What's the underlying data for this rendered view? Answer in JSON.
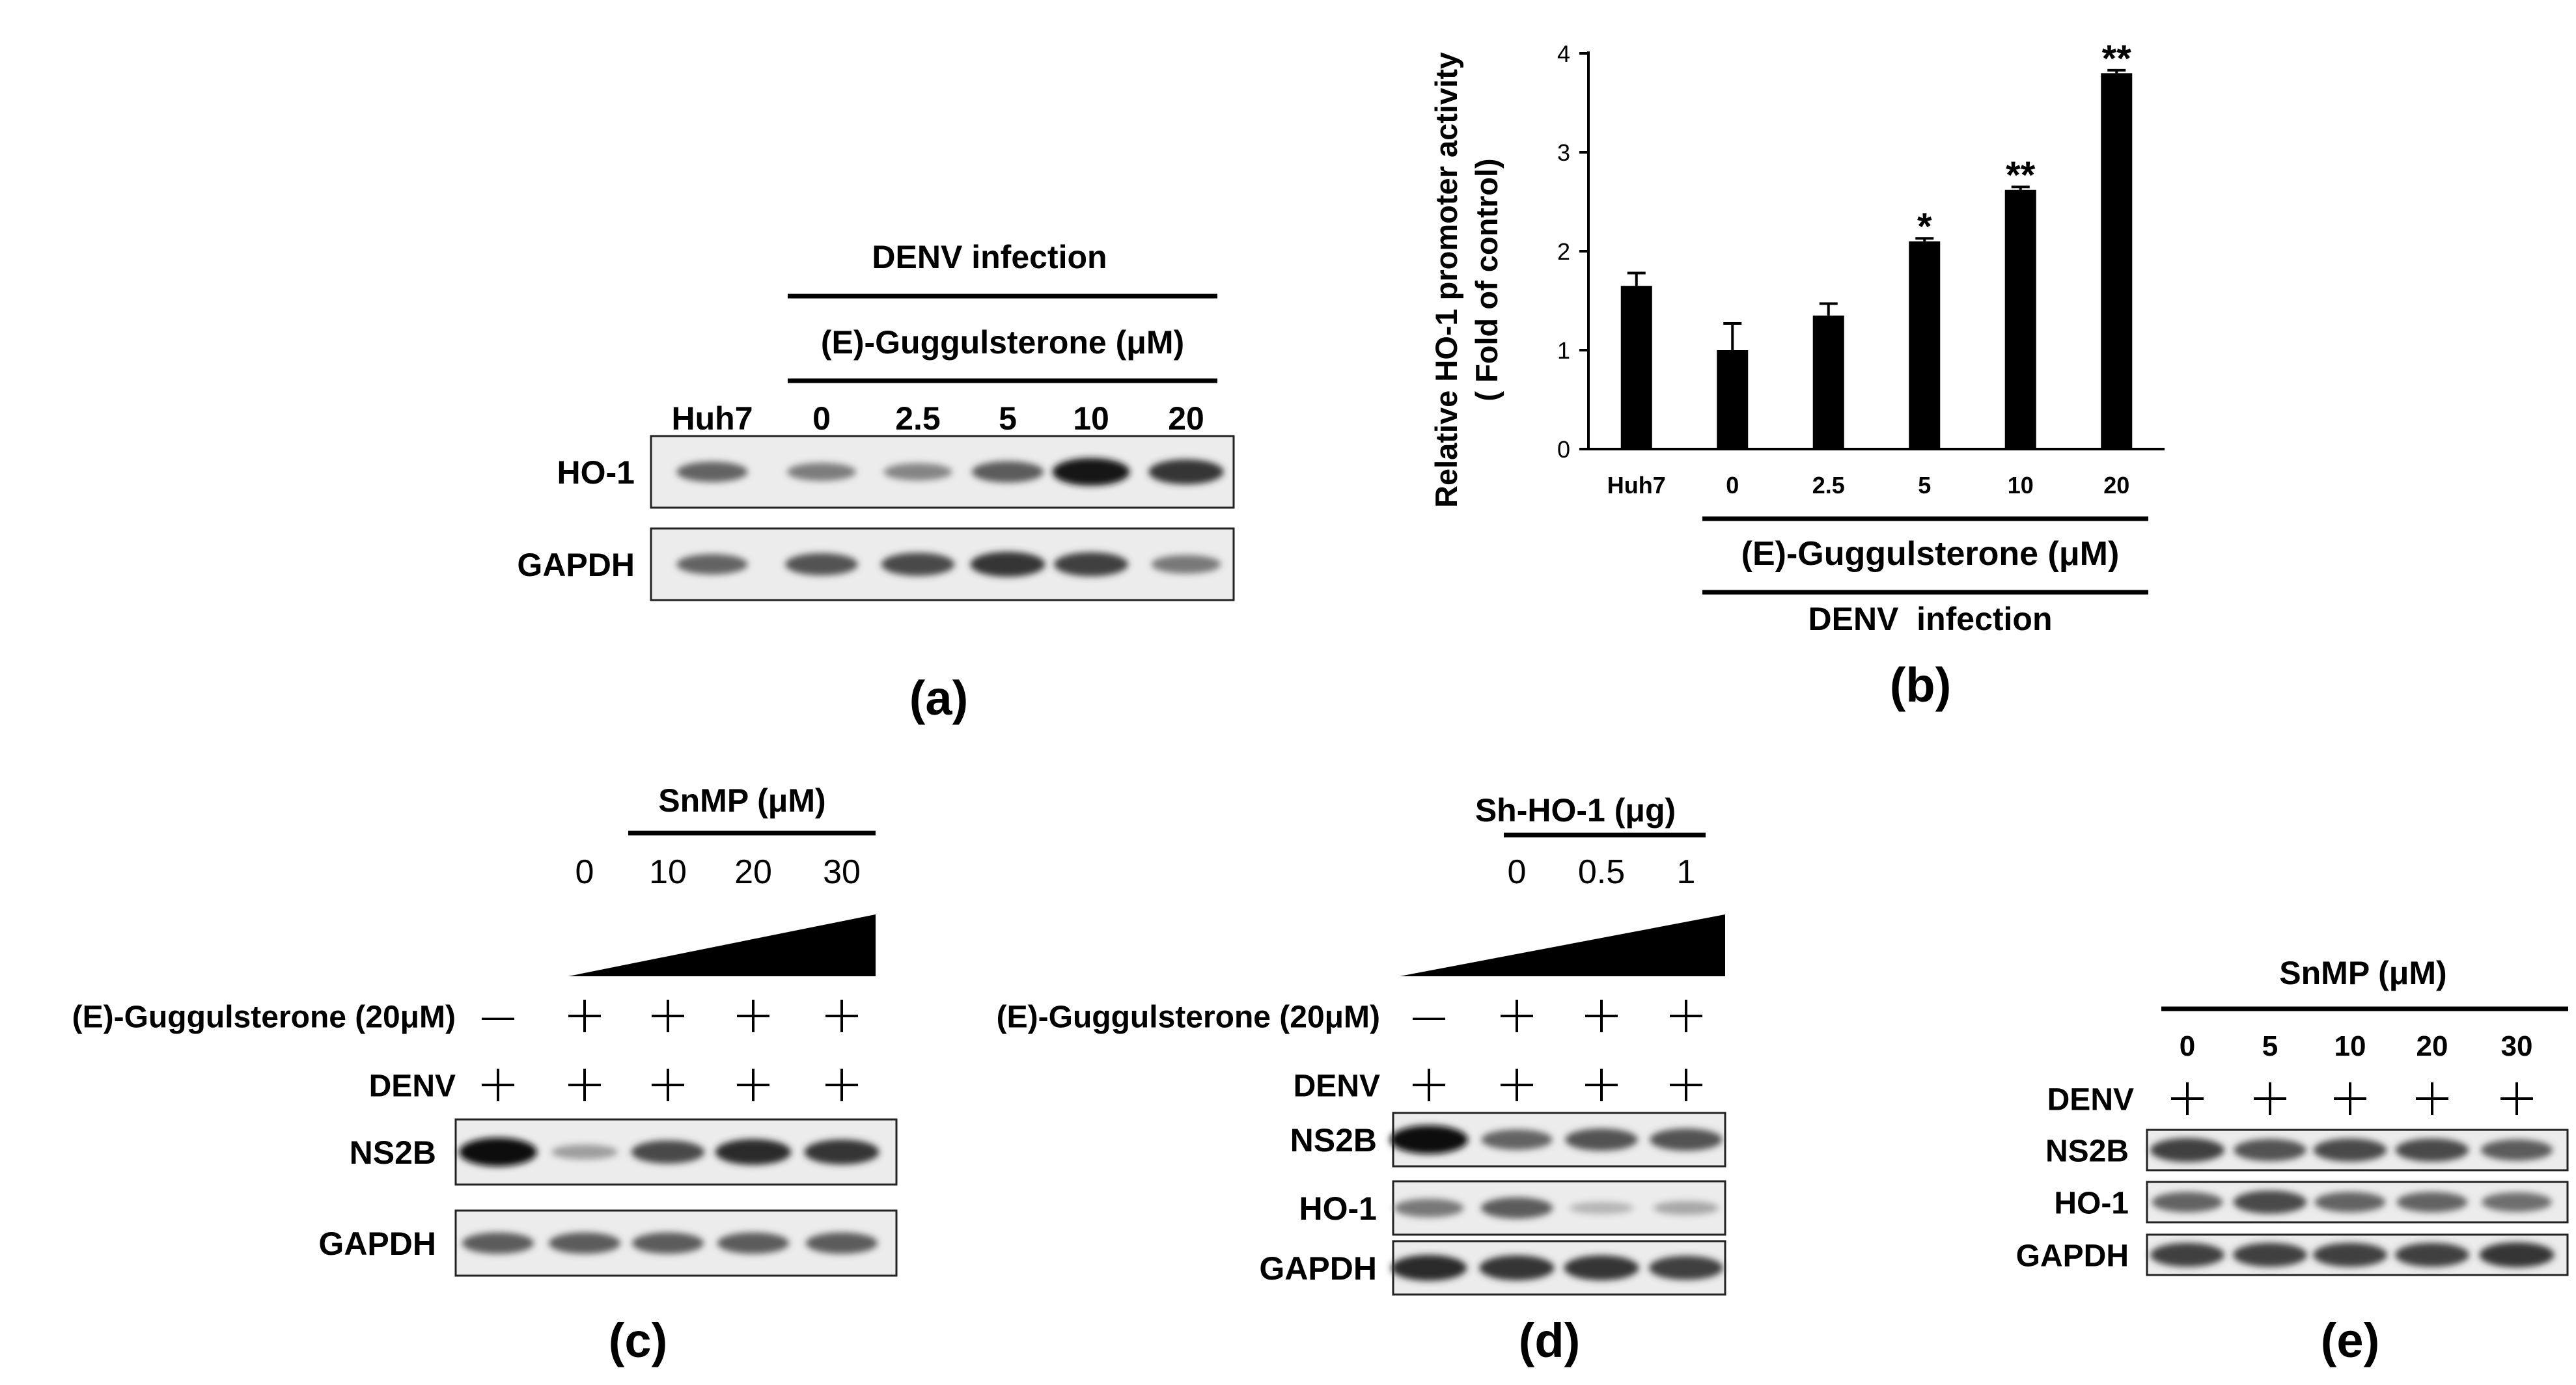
{
  "panel_a": {
    "label": "(a)",
    "header": "DENV infection",
    "subheader": "(E)-Guggulsterone (μM)",
    "lanes": [
      "Huh7",
      "0",
      "2.5",
      "5",
      "10",
      "20"
    ],
    "rows": [
      {
        "name": "HO-1",
        "intensity": [
          0.55,
          0.42,
          0.38,
          0.6,
          0.95,
          0.8
        ]
      },
      {
        "name": "GAPDH",
        "intensity": [
          0.55,
          0.65,
          0.7,
          0.8,
          0.75,
          0.45
        ]
      }
    ]
  },
  "panel_b": {
    "label": "(b)",
    "header": "(E)-Guggulsterone (μM)",
    "subheader": "DENV  infection",
    "chart_data": {
      "type": "bar",
      "categories": [
        "Huh7",
        "0",
        "2.5",
        "5",
        "10",
        "20"
      ],
      "values": [
        1.65,
        1.0,
        1.35,
        2.1,
        2.62,
        3.8
      ],
      "errors": [
        0.13,
        0.27,
        0.12,
        0.03,
        0.03,
        0.03
      ],
      "significance": [
        "",
        "",
        "",
        "*",
        "**",
        "**"
      ],
      "ylabel_line1": "Relative HO-1 promoter activity",
      "ylabel_line2": "( Fold of control)",
      "ylim": [
        0,
        4
      ],
      "yticks": [
        "0",
        "1",
        "2",
        "3",
        "4"
      ]
    }
  },
  "panel_c": {
    "label": "(c)",
    "title": "SnMP (μM)",
    "doses": [
      "0",
      "10",
      "20",
      "30"
    ],
    "treatment_rows": [
      {
        "name": "(E)-Guggulsterone (20μM)",
        "marks": [
          "—",
          "+",
          "+",
          "+",
          "+"
        ]
      },
      {
        "name": "DENV",
        "marks": [
          "+",
          "+",
          "+",
          "+",
          "+"
        ]
      }
    ],
    "rows": [
      {
        "name": "NS2B",
        "intensity": [
          1.0,
          0.25,
          0.7,
          0.85,
          0.8
        ]
      },
      {
        "name": "GAPDH",
        "intensity": [
          0.6,
          0.6,
          0.6,
          0.6,
          0.6
        ]
      }
    ]
  },
  "panel_d": {
    "label": "(d)",
    "title": "Sh-HO-1 (μg)",
    "doses": [
      "0",
      "0.5",
      "1"
    ],
    "treatment_rows": [
      {
        "name": "(E)-Guggulsterone (20μM)",
        "marks": [
          "—",
          "+",
          "+",
          "+"
        ]
      },
      {
        "name": "DENV",
        "marks": [
          "+",
          "+",
          "+",
          "+"
        ]
      }
    ],
    "rows": [
      {
        "name": "NS2B",
        "intensity": [
          1.0,
          0.55,
          0.65,
          0.65
        ]
      },
      {
        "name": "HO-1",
        "intensity": [
          0.45,
          0.6,
          0.12,
          0.2
        ]
      },
      {
        "name": "GAPDH",
        "intensity": [
          0.85,
          0.8,
          0.8,
          0.75
        ]
      }
    ]
  },
  "panel_e": {
    "label": "(e)",
    "title": "SnMP (μM)",
    "lanes": [
      "0",
      "5",
      "10",
      "20",
      "30"
    ],
    "treatment_rows": [
      {
        "name": "DENV",
        "marks": [
          "+",
          "+",
          "+",
          "+",
          "+"
        ]
      }
    ],
    "rows": [
      {
        "name": "NS2B",
        "intensity": [
          0.75,
          0.65,
          0.7,
          0.7,
          0.6
        ]
      },
      {
        "name": "HO-1",
        "intensity": [
          0.55,
          0.7,
          0.55,
          0.55,
          0.5
        ]
      },
      {
        "name": "GAPDH",
        "intensity": [
          0.75,
          0.75,
          0.75,
          0.75,
          0.8
        ]
      }
    ]
  }
}
